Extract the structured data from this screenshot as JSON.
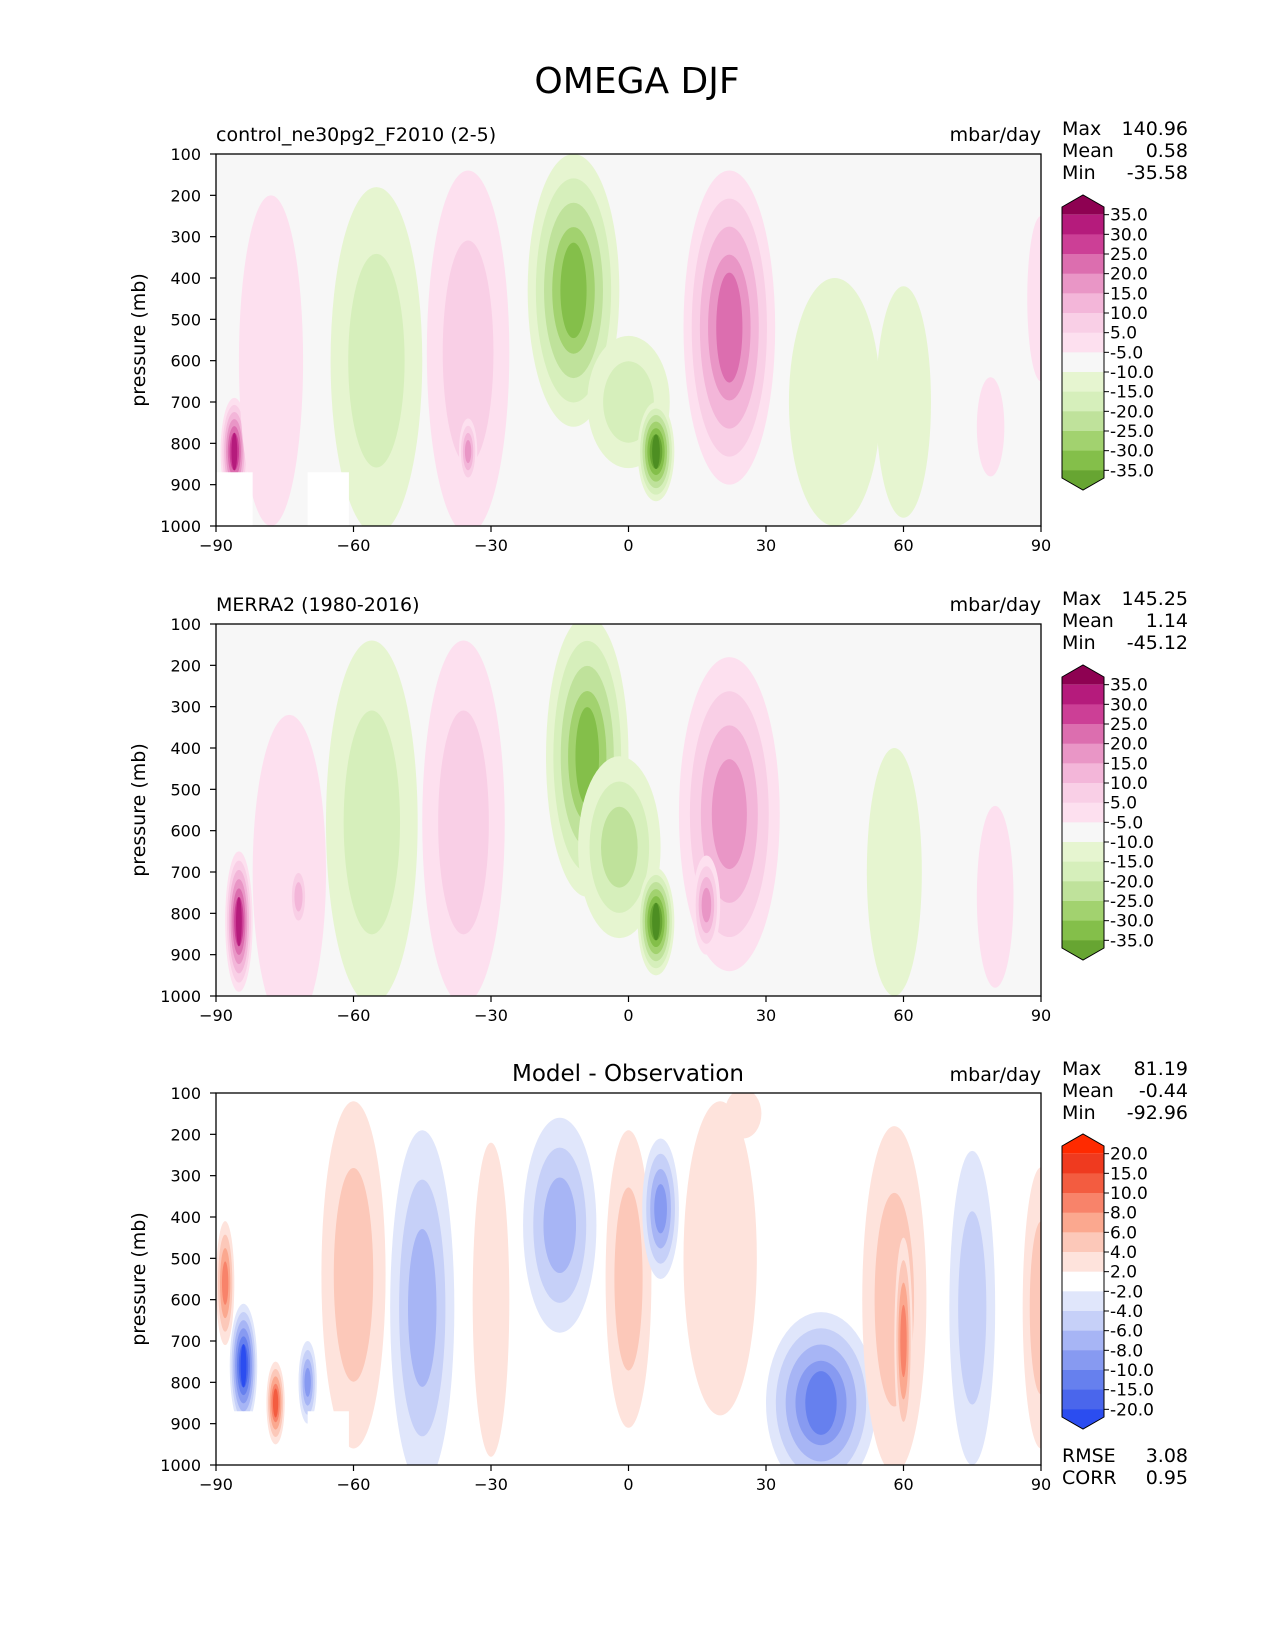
{
  "title": "OMEGA DJF",
  "colors": {
    "plot_bg": "#f7f7f7",
    "diff_bg": "#ffffff",
    "seq_pos": [
      "#f7f7f7",
      "#fde0ef",
      "#f9cfe6",
      "#f3b6d9",
      "#e996c6",
      "#dc6eaf",
      "#cc3f96",
      "#b51b7c",
      "#8e0152"
    ],
    "seq_neg": [
      "#f7f7f7",
      "#e6f5d0",
      "#d6efbb",
      "#bfe29b",
      "#a2d26f",
      "#84bf4a",
      "#67a532",
      "#4d8e22",
      "#276419"
    ],
    "div_pos": [
      "#ffffff",
      "#fee3dc",
      "#fcc8b9",
      "#fba88f",
      "#f8836a",
      "#f35c40",
      "#ef3a1f",
      "#ff2a00"
    ],
    "div_neg": [
      "#ffffff",
      "#e0e6fb",
      "#c6d0f8",
      "#a7b5f5",
      "#879af1",
      "#6680ee",
      "#4a66ec",
      "#2b4df0",
      "#0a2eff"
    ]
  },
  "chart_data": [
    {
      "type": "contour",
      "panel": "test",
      "title": "control_ne30pg2_F2010 (2-5)",
      "units": "mbar/day",
      "stats": {
        "max_label": "Max",
        "max": "140.96",
        "mean_label": "Mean",
        "mean": "0.58",
        "min_label": "Min",
        "min": "-35.58"
      },
      "xlabel": "",
      "ylabel": "pressure (mb)",
      "xlim": [
        -90,
        90
      ],
      "ylim": [
        1000,
        100
      ],
      "xticks": [
        "−90",
        "−60",
        "−30",
        "0",
        "30",
        "60",
        "90"
      ],
      "yticks": [
        "100",
        "200",
        "300",
        "400",
        "500",
        "600",
        "700",
        "800",
        "900",
        "1000"
      ],
      "colorbar_levels": [
        "35.0",
        "30.0",
        "25.0",
        "20.0",
        "15.0",
        "10.0",
        "5.0",
        "-5.0",
        "-10.0",
        "-15.0",
        "-20.0",
        "-25.0",
        "-30.0",
        "-35.0"
      ],
      "features": [
        {
          "lat": -86,
          "p": 820,
          "wlat": 3,
          "wp": 130,
          "value": 36
        },
        {
          "lat": -78,
          "p": 600,
          "wlat": 7,
          "wp": 400,
          "value": 6
        },
        {
          "lat": -55,
          "p": 600,
          "wlat": 10,
          "wp": 420,
          "value": -11
        },
        {
          "lat": -35,
          "p": 580,
          "wlat": 9,
          "wp": 440,
          "value": 12
        },
        {
          "lat": -35,
          "p": 820,
          "wlat": 2,
          "wp": 80,
          "value": 20
        },
        {
          "lat": -12,
          "p": 430,
          "wlat": 10,
          "wp": 330,
          "value": -28
        },
        {
          "lat": 0,
          "p": 700,
          "wlat": 9,
          "wp": 160,
          "value": -14
        },
        {
          "lat": 6,
          "p": 820,
          "wlat": 4,
          "wp": 120,
          "value": -36
        },
        {
          "lat": 22,
          "p": 520,
          "wlat": 10,
          "wp": 380,
          "value": 28
        },
        {
          "lat": 45,
          "p": 700,
          "wlat": 10,
          "wp": 300,
          "value": -6
        },
        {
          "lat": 60,
          "p": 700,
          "wlat": 6,
          "wp": 280,
          "value": -7
        },
        {
          "lat": 79,
          "p": 760,
          "wlat": 3,
          "wp": 120,
          "value": 6
        },
        {
          "lat": 90,
          "p": 450,
          "wlat": 3,
          "wp": 200,
          "value": 6
        }
      ],
      "mask": [
        [
          -70,
          -61,
          870,
          1000
        ],
        [
          -90,
          -82,
          870,
          1000
        ]
      ],
      "levels": [
        5,
        10,
        15,
        20,
        25,
        30,
        35,
        40
      ]
    },
    {
      "type": "contour",
      "panel": "reference",
      "title": "MERRA2 (1980-2016)",
      "units": "mbar/day",
      "stats": {
        "max_label": "Max",
        "max": "145.25",
        "mean_label": "Mean",
        "mean": "1.14",
        "min_label": "Min",
        "min": "-45.12"
      },
      "xlabel": "",
      "ylabel": "pressure (mb)",
      "xlim": [
        -90,
        90
      ],
      "ylim": [
        1000,
        100
      ],
      "xticks": [
        "−90",
        "−60",
        "−30",
        "0",
        "30",
        "60",
        "90"
      ],
      "yticks": [
        "100",
        "200",
        "300",
        "400",
        "500",
        "600",
        "700",
        "800",
        "900",
        "1000"
      ],
      "colorbar_levels": [
        "35.0",
        "30.0",
        "25.0",
        "20.0",
        "15.0",
        "10.0",
        "5.0",
        "-5.0",
        "-10.0",
        "-15.0",
        "-20.0",
        "-25.0",
        "-30.0",
        "-35.0"
      ],
      "features": [
        {
          "lat": -85,
          "p": 820,
          "wlat": 3,
          "wp": 170,
          "value": 36
        },
        {
          "lat": -74,
          "p": 700,
          "wlat": 8,
          "wp": 380,
          "value": 7
        },
        {
          "lat": -72,
          "p": 760,
          "wlat": 2,
          "wp": 80,
          "value": 16
        },
        {
          "lat": -56,
          "p": 580,
          "wlat": 10,
          "wp": 440,
          "value": -12
        },
        {
          "lat": -36,
          "p": 580,
          "wlat": 9,
          "wp": 440,
          "value": 12
        },
        {
          "lat": -9,
          "p": 420,
          "wlat": 9,
          "wp": 340,
          "value": -27
        },
        {
          "lat": -2,
          "p": 640,
          "wlat": 9,
          "wp": 220,
          "value": -16
        },
        {
          "lat": 6,
          "p": 820,
          "wlat": 4,
          "wp": 130,
          "value": -38
        },
        {
          "lat": 22,
          "p": 560,
          "wlat": 11,
          "wp": 380,
          "value": 20
        },
        {
          "lat": 17,
          "p": 780,
          "wlat": 3,
          "wp": 120,
          "value": 24
        },
        {
          "lat": 58,
          "p": 700,
          "wlat": 6,
          "wp": 300,
          "value": -7
        },
        {
          "lat": 80,
          "p": 760,
          "wlat": 4,
          "wp": 220,
          "value": 8
        }
      ],
      "mask": [],
      "levels": [
        5,
        10,
        15,
        20,
        25,
        30,
        35,
        40
      ]
    },
    {
      "type": "contour",
      "panel": "difference",
      "title": "Model - Observation",
      "units": "mbar/day",
      "stats": {
        "max_label": "Max",
        "max": "81.19",
        "mean_label": "Mean",
        "mean": "-0.44",
        "min_label": "Min",
        "min": "-92.96"
      },
      "extra_stats": {
        "rmse_label": "RMSE",
        "rmse": "3.08",
        "corr_label": "CORR",
        "corr": "0.95"
      },
      "xlabel": "",
      "ylabel": "pressure (mb)",
      "xlim": [
        -90,
        90
      ],
      "ylim": [
        1000,
        100
      ],
      "xticks": [
        "−90",
        "−60",
        "−30",
        "0",
        "30",
        "60",
        "90"
      ],
      "yticks": [
        "100",
        "200",
        "300",
        "400",
        "500",
        "600",
        "700",
        "800",
        "900",
        "1000"
      ],
      "colorbar_levels": [
        "20.0",
        "15.0",
        "10.0",
        "8.0",
        "6.0",
        "4.0",
        "2.0",
        "-2.0",
        "-4.0",
        "-6.0",
        "-8.0",
        "-10.0",
        "-15.0",
        "-20.0"
      ],
      "features": [
        {
          "lat": -88,
          "p": 560,
          "wlat": 2,
          "wp": 150,
          "value": 9
        },
        {
          "lat": -84,
          "p": 760,
          "wlat": 3,
          "wp": 150,
          "value": -22
        },
        {
          "lat": -77,
          "p": 850,
          "wlat": 2,
          "wp": 100,
          "value": 12
        },
        {
          "lat": -70,
          "p": 800,
          "wlat": 2,
          "wp": 100,
          "value": -8
        },
        {
          "lat": -60,
          "p": 540,
          "wlat": 7,
          "wp": 420,
          "value": 5
        },
        {
          "lat": -45,
          "p": 620,
          "wlat": 7,
          "wp": 430,
          "value": -6
        },
        {
          "lat": -30,
          "p": 600,
          "wlat": 4,
          "wp": 380,
          "value": 2.5
        },
        {
          "lat": -15,
          "p": 420,
          "wlat": 8,
          "wp": 260,
          "value": -6
        },
        {
          "lat": 0,
          "p": 550,
          "wlat": 5,
          "wp": 360,
          "value": 5
        },
        {
          "lat": 7,
          "p": 380,
          "wlat": 4,
          "wp": 170,
          "value": -8
        },
        {
          "lat": 20,
          "p": 500,
          "wlat": 8,
          "wp": 380,
          "value": 3
        },
        {
          "lat": 42,
          "p": 850,
          "wlat": 12,
          "wp": 220,
          "value": -10
        },
        {
          "lat": 58,
          "p": 600,
          "wlat": 7,
          "wp": 420,
          "value": 5
        },
        {
          "lat": 60,
          "p": 700,
          "wlat": 2,
          "wp": 250,
          "value": 9
        },
        {
          "lat": 75,
          "p": 620,
          "wlat": 5,
          "wp": 380,
          "value": -5
        },
        {
          "lat": 90,
          "p": 620,
          "wlat": 4,
          "wp": 340,
          "value": 4
        },
        {
          "lat": 25,
          "p": 150,
          "wlat": 4,
          "wp": 60,
          "value": 3
        }
      ],
      "mask": [
        [
          -70,
          -61,
          870,
          1000
        ],
        [
          -90,
          -82,
          870,
          1000
        ]
      ],
      "levels": [
        2,
        4,
        6,
        8,
        10,
        15,
        20,
        25
      ]
    }
  ]
}
